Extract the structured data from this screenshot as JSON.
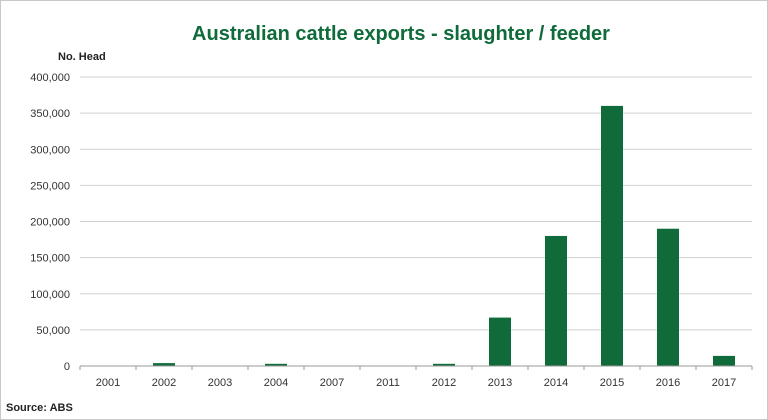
{
  "chart_data": {
    "type": "bar",
    "title": "Australian cattle exports - slaughter / feeder",
    "ylabel": "No. Head",
    "xlabel": "",
    "source": "Source: ABS",
    "categories": [
      "2001",
      "2002",
      "2003",
      "2004",
      "2007",
      "2011",
      "2012",
      "2013",
      "2014",
      "2015",
      "2016",
      "2017"
    ],
    "values": [
      0,
      4000,
      0,
      3000,
      0,
      0,
      3000,
      67000,
      180000,
      360000,
      190000,
      14000
    ],
    "ylim": [
      0,
      400000
    ],
    "yticks": [
      "0",
      "50,000",
      "100,000",
      "150,000",
      "200,000",
      "250,000",
      "300,000",
      "350,000",
      "400,000"
    ],
    "ytick_values": [
      0,
      50000,
      100000,
      150000,
      200000,
      250000,
      300000,
      350000,
      400000
    ],
    "grid": true,
    "legend": "none"
  },
  "colors": {
    "bar": "#0f6b3a",
    "title": "#0f6b3a",
    "grid": "#d0d0d0",
    "axis": "#9a9a9a"
  }
}
